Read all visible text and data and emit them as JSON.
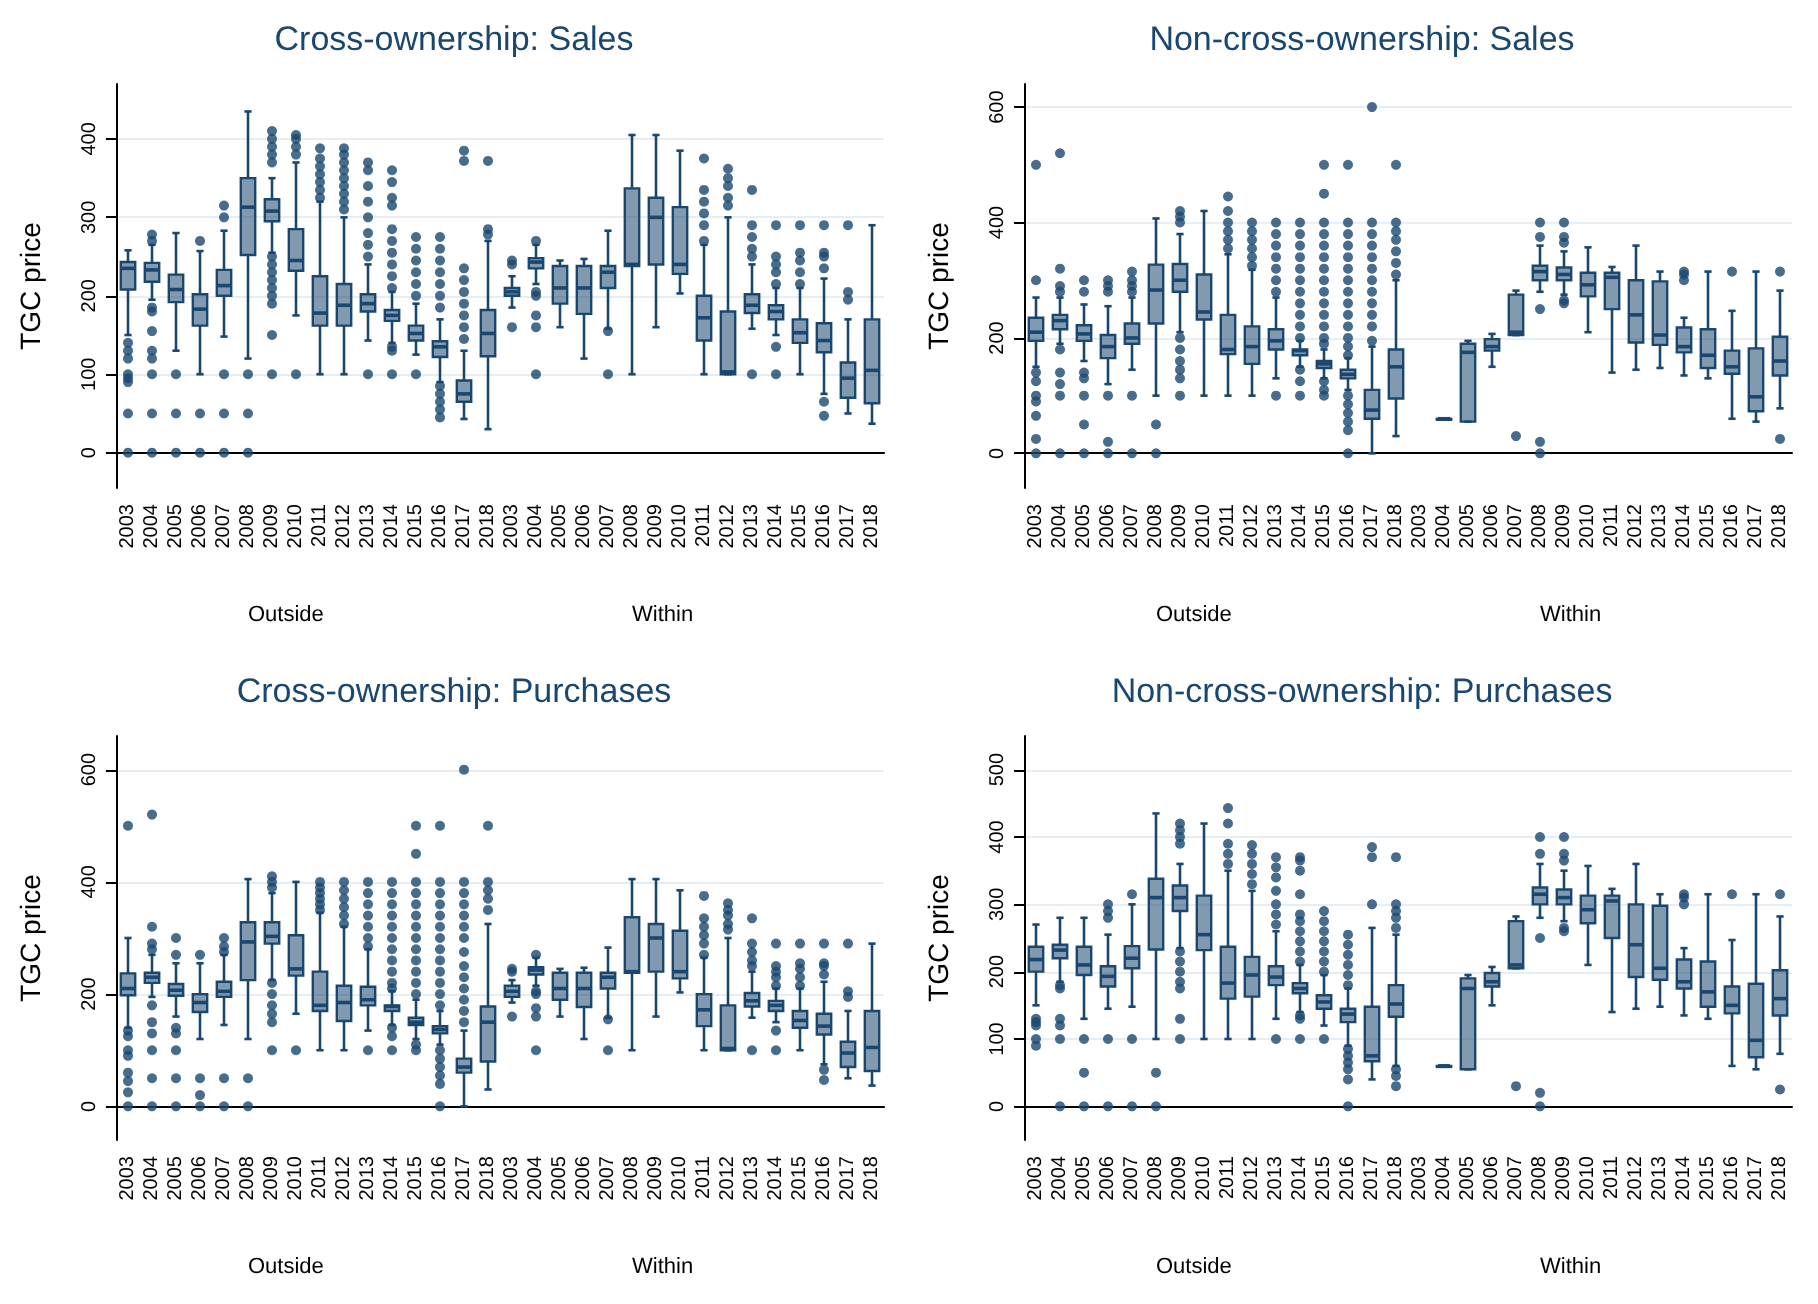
{
  "chart_data": [
    {
      "type": "box",
      "title": "Cross-ownership: Sales",
      "ylabel": "TGC price",
      "color": "#1a476f",
      "grid": "y",
      "ylim": [
        -45,
        470
      ],
      "yticks": [
        0,
        100,
        200,
        300,
        400
      ],
      "annotations": [
        "Outside",
        "Within"
      ],
      "categories": [
        "2003",
        "2004",
        "2005",
        "2006",
        "2007",
        "2008",
        "2009",
        "2010",
        "2011",
        "2012",
        "2013",
        "2014",
        "2015",
        "2016",
        "2017",
        "2018",
        "2003",
        "2004",
        "2005",
        "2006",
        "2007",
        "2008",
        "2009",
        "2010",
        "2011",
        "2012",
        "2013",
        "2014",
        "2015",
        "2016",
        "2017",
        "2018"
      ],
      "boxes": [
        {
          "low": 150,
          "q1": 208,
          "median": 235,
          "q3": 243,
          "high": 258,
          "outliers": [
            140,
            130,
            120,
            100,
            95,
            90,
            50,
            0
          ]
        },
        {
          "low": 195,
          "q1": 218,
          "median": 233,
          "q3": 242,
          "high": 265,
          "outliers": [
            278,
            270,
            185,
            180,
            155,
            130,
            120,
            100,
            50,
            0
          ]
        },
        {
          "low": 130,
          "q1": 192,
          "median": 208,
          "q3": 227,
          "high": 280,
          "outliers": [
            100,
            50,
            0
          ]
        },
        {
          "low": 100,
          "q1": 162,
          "median": 183,
          "q3": 202,
          "high": 257,
          "outliers": [
            270,
            50,
            0
          ]
        },
        {
          "low": 148,
          "q1": 200,
          "median": 213,
          "q3": 233,
          "high": 283,
          "outliers": [
            315,
            300,
            100,
            50,
            0
          ]
        },
        {
          "low": 120,
          "q1": 252,
          "median": 313,
          "q3": 350,
          "high": 435,
          "outliers": [
            100,
            50,
            0
          ]
        },
        {
          "low": 255,
          "q1": 295,
          "median": 308,
          "q3": 323,
          "high": 350,
          "outliers": [
            410,
            400,
            390,
            380,
            370,
            250,
            240,
            230,
            220,
            210,
            200,
            190,
            150,
            100
          ]
        },
        {
          "low": 175,
          "q1": 232,
          "median": 245,
          "q3": 285,
          "high": 370,
          "outliers": [
            405,
            400,
            390,
            380,
            100
          ]
        },
        {
          "low": 100,
          "q1": 162,
          "median": 178,
          "q3": 225,
          "high": 320,
          "outliers": [
            388,
            375,
            365,
            355,
            345,
            335,
            325
          ]
        },
        {
          "low": 100,
          "q1": 162,
          "median": 188,
          "q3": 215,
          "high": 300,
          "outliers": [
            388,
            380,
            370,
            360,
            350,
            340,
            330,
            320,
            310
          ]
        },
        {
          "low": 143,
          "q1": 180,
          "median": 190,
          "q3": 202,
          "high": 240,
          "outliers": [
            370,
            360,
            340,
            320,
            300,
            280,
            265,
            250,
            100
          ]
        },
        {
          "low": 140,
          "q1": 168,
          "median": 175,
          "q3": 182,
          "high": 205,
          "outliers": [
            360,
            345,
            325,
            315,
            285,
            270,
            255,
            240,
            225,
            210,
            135,
            130,
            100
          ]
        },
        {
          "low": 125,
          "q1": 143,
          "median": 152,
          "q3": 162,
          "high": 190,
          "outliers": [
            275,
            260,
            245,
            230,
            215,
            200,
            100
          ]
        },
        {
          "low": 90,
          "q1": 122,
          "median": 135,
          "q3": 142,
          "high": 170,
          "outliers": [
            275,
            260,
            245,
            230,
            215,
            200,
            185,
            85,
            75,
            65,
            55,
            45
          ]
        },
        {
          "low": 43,
          "q1": 65,
          "median": 75,
          "q3": 92,
          "high": 130,
          "outliers": [
            385,
            372,
            235,
            220,
            205,
            190,
            175,
            160,
            145
          ]
        },
        {
          "low": 30,
          "q1": 123,
          "median": 152,
          "q3": 182,
          "high": 270,
          "outliers": [
            372,
            285,
            278
          ]
        },
        {
          "low": 185,
          "q1": 200,
          "median": 205,
          "q3": 210,
          "high": 225,
          "outliers": [
            245,
            240,
            160
          ]
        },
        {
          "low": 215,
          "q1": 235,
          "median": 243,
          "q3": 248,
          "high": 265,
          "outliers": [
            270,
            205,
            200,
            175,
            160,
            100
          ]
        },
        {
          "low": 160,
          "q1": 190,
          "median": 210,
          "q3": 238,
          "high": 245
        },
        {
          "low": 120,
          "q1": 177,
          "median": 210,
          "q3": 238,
          "high": 247
        },
        {
          "low": 158,
          "q1": 210,
          "median": 230,
          "q3": 238,
          "high": 283,
          "outliers": [
            155,
            100
          ]
        },
        {
          "low": 100,
          "q1": 238,
          "median": 240,
          "q3": 337,
          "high": 405
        },
        {
          "low": 160,
          "q1": 240,
          "median": 300,
          "q3": 325,
          "high": 405
        },
        {
          "low": 203,
          "q1": 228,
          "median": 240,
          "q3": 313,
          "high": 385
        },
        {
          "low": 100,
          "q1": 143,
          "median": 172,
          "q3": 200,
          "high": 265,
          "outliers": [
            375,
            335,
            320,
            305,
            290,
            270
          ]
        },
        {
          "low": 100,
          "q1": 100,
          "median": 103,
          "q3": 180,
          "high": 300,
          "outliers": [
            362,
            350,
            340,
            325,
            315
          ]
        },
        {
          "low": 158,
          "q1": 178,
          "median": 188,
          "q3": 202,
          "high": 240,
          "outliers": [
            335,
            290,
            275,
            260,
            250,
            100
          ]
        },
        {
          "low": 150,
          "q1": 170,
          "median": 180,
          "q3": 188,
          "high": 210,
          "outliers": [
            290,
            250,
            240,
            230,
            215,
            135,
            100
          ]
        },
        {
          "low": 100,
          "q1": 140,
          "median": 153,
          "q3": 170,
          "high": 210,
          "outliers": [
            290,
            255,
            245,
            230,
            215
          ]
        },
        {
          "low": 75,
          "q1": 128,
          "median": 143,
          "q3": 165,
          "high": 222,
          "outliers": [
            290,
            255,
            250,
            235,
            65,
            47
          ]
        },
        {
          "low": 50,
          "q1": 70,
          "median": 95,
          "q3": 115,
          "high": 170,
          "outliers": [
            290,
            205,
            195
          ]
        },
        {
          "low": 37,
          "q1": 63,
          "median": 105,
          "q3": 170,
          "high": 290
        }
      ]
    },
    {
      "type": "box",
      "title": "Non-cross-ownership: Sales",
      "ylabel": "TGC price",
      "color": "#1a476f",
      "grid": "y",
      "ylim": [
        -60,
        640
      ],
      "yticks": [
        0,
        200,
        400,
        600
      ],
      "annotations": [
        "Outside",
        "Within"
      ],
      "categories": [
        "2003",
        "2004",
        "2005",
        "2006",
        "2007",
        "2008",
        "2009",
        "2010",
        "2011",
        "2012",
        "2013",
        "2014",
        "2015",
        "2016",
        "2017",
        "2018",
        "2003",
        "2004",
        "2005",
        "2006",
        "2007",
        "2008",
        "2009",
        "2010",
        "2011",
        "2012",
        "2013",
        "2014",
        "2015",
        "2016",
        "2017",
        "2018"
      ],
      "boxes": [
        {
          "low": 150,
          "q1": 195,
          "median": 210,
          "q3": 235,
          "high": 270,
          "outliers": [
            500,
            300,
            140,
            125,
            100,
            90,
            65,
            25,
            0
          ]
        },
        {
          "low": 190,
          "q1": 215,
          "median": 230,
          "q3": 240,
          "high": 270,
          "outliers": [
            520,
            320,
            290,
            280,
            180,
            140,
            120,
            100,
            0
          ]
        },
        {
          "low": 160,
          "q1": 195,
          "median": 207,
          "q3": 222,
          "high": 258,
          "outliers": [
            300,
            280,
            140,
            130,
            100,
            50,
            0
          ]
        },
        {
          "low": 120,
          "q1": 165,
          "median": 185,
          "q3": 205,
          "high": 255,
          "outliers": [
            300,
            290,
            280,
            100,
            20,
            0
          ]
        },
        {
          "low": 145,
          "q1": 190,
          "median": 200,
          "q3": 225,
          "high": 270,
          "outliers": [
            315,
            300,
            290,
            280,
            100,
            0
          ]
        },
        {
          "low": 100,
          "q1": 225,
          "median": 283,
          "q3": 327,
          "high": 407,
          "outliers": [
            50,
            0
          ]
        },
        {
          "low": 210,
          "q1": 280,
          "median": 300,
          "q3": 328,
          "high": 380,
          "outliers": [
            420,
            410,
            400,
            200,
            180,
            160,
            145,
            130,
            100
          ]
        },
        {
          "low": 100,
          "q1": 232,
          "median": 245,
          "q3": 310,
          "high": 420
        },
        {
          "low": 100,
          "q1": 172,
          "median": 180,
          "q3": 240,
          "high": 345,
          "outliers": [
            445,
            420,
            400,
            385,
            370,
            355
          ]
        },
        {
          "low": 100,
          "q1": 155,
          "median": 185,
          "q3": 220,
          "high": 318,
          "outliers": [
            400,
            385,
            370,
            355,
            340,
            325
          ]
        },
        {
          "low": 130,
          "q1": 180,
          "median": 195,
          "q3": 215,
          "high": 270,
          "outliers": [
            400,
            380,
            360,
            340,
            320,
            300,
            280,
            100
          ]
        },
        {
          "low": 150,
          "q1": 170,
          "median": 178,
          "q3": 180,
          "high": 195,
          "outliers": [
            400,
            380,
            360,
            340,
            320,
            300,
            280,
            260,
            240,
            220,
            200,
            145,
            125,
            100
          ]
        },
        {
          "low": 130,
          "q1": 148,
          "median": 155,
          "q3": 160,
          "high": 180,
          "outliers": [
            500,
            450,
            400,
            380,
            360,
            340,
            320,
            300,
            280,
            260,
            240,
            220,
            200,
            190,
            125,
            110,
            100
          ]
        },
        {
          "low": 110,
          "q1": 130,
          "median": 137,
          "q3": 145,
          "high": 165,
          "outliers": [
            500,
            400,
            380,
            360,
            340,
            320,
            300,
            280,
            260,
            240,
            220,
            200,
            185,
            170,
            100,
            85,
            70,
            55,
            40,
            0
          ]
        },
        {
          "low": 0,
          "q1": 60,
          "median": 75,
          "q3": 110,
          "high": 185,
          "outliers": [
            600,
            400,
            380,
            360,
            340,
            320,
            300,
            280,
            260,
            240,
            220,
            195
          ]
        },
        {
          "low": 30,
          "q1": 95,
          "median": 150,
          "q3": 180,
          "high": 300,
          "outliers": [
            500,
            400,
            385,
            370,
            350,
            330,
            310
          ]
        },
        null,
        {
          "low": 60,
          "q1": 60,
          "median": 60,
          "q3": 60,
          "high": 60
        },
        {
          "low": 55,
          "q1": 55,
          "median": 175,
          "q3": 190,
          "high": 195
        },
        {
          "low": 150,
          "q1": 178,
          "median": 185,
          "q3": 198,
          "high": 207
        },
        {
          "low": 205,
          "q1": 205,
          "median": 210,
          "q3": 275,
          "high": 282,
          "outliers": [
            30
          ]
        },
        {
          "low": 280,
          "q1": 300,
          "median": 315,
          "q3": 325,
          "high": 360,
          "outliers": [
            400,
            375,
            250,
            20,
            0
          ]
        },
        {
          "low": 275,
          "q1": 300,
          "median": 310,
          "q3": 322,
          "high": 350,
          "outliers": [
            400,
            375,
            365,
            265,
            260
          ]
        },
        {
          "low": 210,
          "q1": 272,
          "median": 292,
          "q3": 313,
          "high": 357
        },
        {
          "low": 140,
          "q1": 250,
          "median": 305,
          "q3": 313,
          "high": 323
        },
        {
          "low": 145,
          "q1": 192,
          "median": 240,
          "q3": 300,
          "high": 360
        },
        {
          "low": 148,
          "q1": 188,
          "median": 205,
          "q3": 298,
          "high": 315
        },
        {
          "low": 135,
          "q1": 175,
          "median": 185,
          "q3": 218,
          "high": 235,
          "outliers": [
            315,
            310,
            300
          ]
        },
        {
          "low": 130,
          "q1": 148,
          "median": 170,
          "q3": 215,
          "high": 315
        },
        {
          "low": 60,
          "q1": 138,
          "median": 150,
          "q3": 178,
          "high": 247,
          "outliers": [
            315
          ]
        },
        {
          "low": 55,
          "q1": 73,
          "median": 98,
          "q3": 182,
          "high": 315
        },
        {
          "low": 78,
          "q1": 135,
          "median": 160,
          "q3": 202,
          "high": 282,
          "outliers": [
            315,
            25
          ]
        }
      ]
    },
    {
      "type": "box",
      "title": "Cross-ownership: Purchases",
      "ylabel": "TGC price",
      "color": "#1a476f",
      "grid": "y",
      "ylim": [
        -60,
        660
      ],
      "yticks": [
        0,
        200,
        400,
        600
      ],
      "annotations": [
        "Outside",
        "Within"
      ],
      "categories": [
        "2003",
        "2004",
        "2005",
        "2006",
        "2007",
        "2008",
        "2009",
        "2010",
        "2011",
        "2012",
        "2013",
        "2014",
        "2015",
        "2016",
        "2017",
        "2018",
        "2003",
        "2004",
        "2005",
        "2006",
        "2007",
        "2008",
        "2009",
        "2010",
        "2011",
        "2012",
        "2013",
        "2014",
        "2015",
        "2016",
        "2017",
        "2018"
      ],
      "boxes": [
        {
          "low": 140,
          "q1": 198,
          "median": 210,
          "q3": 237,
          "high": 300,
          "outliers": [
            500,
            135,
            125,
            100,
            90,
            60,
            45,
            25,
            0
          ]
        },
        {
          "low": 195,
          "q1": 220,
          "median": 230,
          "q3": 238,
          "high": 270,
          "outliers": [
            520,
            320,
            290,
            280,
            180,
            150,
            130,
            100,
            50,
            0
          ]
        },
        {
          "low": 160,
          "q1": 197,
          "median": 207,
          "q3": 218,
          "high": 255,
          "outliers": [
            300,
            270,
            140,
            130,
            100,
            50,
            0
          ]
        },
        {
          "low": 120,
          "q1": 168,
          "median": 185,
          "q3": 200,
          "high": 255,
          "outliers": [
            270,
            50,
            20,
            0
          ]
        },
        {
          "low": 145,
          "q1": 195,
          "median": 205,
          "q3": 222,
          "high": 270,
          "outliers": [
            300,
            285,
            275,
            50,
            0
          ]
        },
        {
          "low": 120,
          "q1": 225,
          "median": 293,
          "q3": 328,
          "high": 405,
          "outliers": [
            50,
            0
          ]
        },
        {
          "low": 225,
          "q1": 290,
          "median": 303,
          "q3": 328,
          "high": 380,
          "outliers": [
            410,
            400,
            390,
            220,
            200,
            180,
            165,
            150,
            100
          ]
        },
        {
          "low": 165,
          "q1": 233,
          "median": 245,
          "q3": 305,
          "high": 400,
          "outliers": [
            100
          ]
        },
        {
          "low": 100,
          "q1": 170,
          "median": 180,
          "q3": 240,
          "high": 345,
          "outliers": [
            400,
            390,
            380,
            370,
            360,
            350
          ]
        },
        {
          "low": 100,
          "q1": 152,
          "median": 185,
          "q3": 215,
          "high": 320,
          "outliers": [
            400,
            385,
            370,
            355,
            340,
            325
          ]
        },
        {
          "low": 135,
          "q1": 180,
          "median": 190,
          "q3": 213,
          "high": 280,
          "outliers": [
            400,
            380,
            360,
            340,
            320,
            300,
            285,
            100
          ]
        },
        {
          "low": 145,
          "q1": 170,
          "median": 178,
          "q3": 180,
          "high": 205,
          "outliers": [
            400,
            380,
            360,
            340,
            320,
            300,
            280,
            260,
            240,
            220,
            210,
            140,
            125,
            100
          ]
        },
        {
          "low": 120,
          "q1": 145,
          "median": 150,
          "q3": 158,
          "high": 190,
          "outliers": [
            500,
            450,
            400,
            380,
            360,
            340,
            320,
            300,
            280,
            260,
            240,
            220,
            200,
            110,
            100
          ]
        },
        {
          "low": 110,
          "q1": 130,
          "median": 137,
          "q3": 143,
          "high": 170,
          "outliers": [
            500,
            400,
            380,
            360,
            340,
            320,
            300,
            280,
            260,
            240,
            220,
            200,
            180,
            100,
            85,
            70,
            55,
            40,
            0
          ]
        },
        {
          "low": 0,
          "q1": 60,
          "median": 70,
          "q3": 85,
          "high": 135,
          "outliers": [
            600,
            400,
            380,
            360,
            340,
            320,
            300,
            275,
            250,
            230,
            210,
            190,
            170,
            150
          ]
        },
        {
          "low": 30,
          "q1": 80,
          "median": 150,
          "q3": 178,
          "high": 325,
          "outliers": [
            500,
            400,
            385,
            370,
            350
          ]
        },
        {
          "low": 185,
          "q1": 195,
          "median": 205,
          "q3": 215,
          "high": 225,
          "outliers": [
            245,
            240,
            160
          ]
        },
        {
          "low": 215,
          "q1": 235,
          "median": 243,
          "q3": 248,
          "high": 265,
          "outliers": [
            270,
            205,
            200,
            175,
            160,
            100
          ]
        },
        {
          "low": 160,
          "q1": 190,
          "median": 210,
          "q3": 238,
          "high": 245
        },
        {
          "low": 120,
          "q1": 177,
          "median": 210,
          "q3": 238,
          "high": 247
        },
        {
          "low": 158,
          "q1": 210,
          "median": 230,
          "q3": 238,
          "high": 283,
          "outliers": [
            155,
            100
          ]
        },
        {
          "low": 100,
          "q1": 238,
          "median": 240,
          "q3": 337,
          "high": 405
        },
        {
          "low": 160,
          "q1": 240,
          "median": 300,
          "q3": 325,
          "high": 405
        },
        {
          "low": 203,
          "q1": 228,
          "median": 240,
          "q3": 313,
          "high": 385
        },
        {
          "low": 100,
          "q1": 143,
          "median": 172,
          "q3": 200,
          "high": 265,
          "outliers": [
            375,
            335,
            320,
            305,
            290,
            270
          ]
        },
        {
          "low": 100,
          "q1": 100,
          "median": 103,
          "q3": 180,
          "high": 300,
          "outliers": [
            362,
            350,
            340,
            325,
            315
          ]
        },
        {
          "low": 158,
          "q1": 178,
          "median": 188,
          "q3": 202,
          "high": 240,
          "outliers": [
            335,
            290,
            275,
            260,
            250,
            100
          ]
        },
        {
          "low": 150,
          "q1": 170,
          "median": 180,
          "q3": 188,
          "high": 210,
          "outliers": [
            290,
            250,
            240,
            230,
            215,
            135,
            100
          ]
        },
        {
          "low": 100,
          "q1": 140,
          "median": 153,
          "q3": 170,
          "high": 210,
          "outliers": [
            290,
            255,
            245,
            230,
            215
          ]
        },
        {
          "low": 75,
          "q1": 128,
          "median": 143,
          "q3": 165,
          "high": 222,
          "outliers": [
            290,
            255,
            250,
            235,
            65,
            47
          ]
        },
        {
          "low": 50,
          "q1": 70,
          "median": 95,
          "q3": 115,
          "high": 170,
          "outliers": [
            290,
            205,
            195
          ]
        },
        {
          "low": 37,
          "q1": 63,
          "median": 105,
          "q3": 170,
          "high": 290
        }
      ]
    },
    {
      "type": "box",
      "title": "Non-cross-ownership: Purchases",
      "ylabel": "TGC price",
      "color": "#1a476f",
      "grid": "y",
      "ylim": [
        -50,
        550
      ],
      "yticks": [
        0,
        100,
        200,
        300,
        400,
        500
      ],
      "annotations": [
        "Outside",
        "Within"
      ],
      "categories": [
        "2003",
        "2004",
        "2005",
        "2006",
        "2007",
        "2008",
        "2009",
        "2010",
        "2011",
        "2012",
        "2013",
        "2014",
        "2015",
        "2016",
        "2017",
        "2018",
        "2003",
        "2004",
        "2005",
        "2006",
        "2007",
        "2008",
        "2009",
        "2010",
        "2011",
        "2012",
        "2013",
        "2014",
        "2015",
        "2016",
        "2017",
        "2018"
      ],
      "boxes": [
        {
          "low": 150,
          "q1": 200,
          "median": 218,
          "q3": 237,
          "high": 270,
          "outliers": [
            130,
            125,
            120,
            100,
            90
          ]
        },
        {
          "low": 185,
          "q1": 220,
          "median": 232,
          "q3": 240,
          "high": 280,
          "outliers": [
            180,
            175,
            130,
            120,
            100,
            0
          ]
        },
        {
          "low": 130,
          "q1": 195,
          "median": 210,
          "q3": 237,
          "high": 280,
          "outliers": [
            100,
            50,
            0
          ]
        },
        {
          "low": 145,
          "q1": 178,
          "median": 193,
          "q3": 208,
          "high": 255,
          "outliers": [
            300,
            290,
            280,
            100,
            0
          ]
        },
        {
          "low": 148,
          "q1": 205,
          "median": 220,
          "q3": 238,
          "high": 300,
          "outliers": [
            315,
            100,
            0
          ]
        },
        {
          "low": 100,
          "q1": 233,
          "median": 310,
          "q3": 338,
          "high": 435,
          "outliers": [
            50,
            0
          ]
        },
        {
          "low": 235,
          "q1": 290,
          "median": 310,
          "q3": 328,
          "high": 360,
          "outliers": [
            420,
            410,
            400,
            390,
            230,
            215,
            200,
            185,
            175,
            130,
            100
          ]
        },
        {
          "low": 100,
          "q1": 232,
          "median": 255,
          "q3": 313,
          "high": 420
        },
        {
          "low": 100,
          "q1": 160,
          "median": 183,
          "q3": 237,
          "high": 350,
          "outliers": [
            443,
            420,
            390,
            375,
            360
          ]
        },
        {
          "low": 100,
          "q1": 163,
          "median": 195,
          "q3": 222,
          "high": 320,
          "outliers": [
            388,
            375,
            360,
            345,
            330
          ]
        },
        {
          "low": 130,
          "q1": 180,
          "median": 192,
          "q3": 208,
          "high": 260,
          "outliers": [
            370,
            355,
            340,
            320,
            300,
            285,
            270,
            100
          ]
        },
        {
          "low": 140,
          "q1": 168,
          "median": 175,
          "q3": 183,
          "high": 210,
          "outliers": [
            370,
            365,
            350,
            315,
            285,
            275,
            260,
            245,
            230,
            215,
            135,
            130,
            100
          ]
        },
        {
          "low": 120,
          "q1": 145,
          "median": 155,
          "q3": 165,
          "high": 195,
          "outliers": [
            290,
            275,
            260,
            245,
            230,
            215,
            200,
            100
          ]
        },
        {
          "low": 90,
          "q1": 125,
          "median": 137,
          "q3": 145,
          "high": 175,
          "outliers": [
            255,
            240,
            225,
            210,
            195,
            180,
            85,
            75,
            65,
            55,
            40,
            0
          ]
        },
        {
          "low": 40,
          "q1": 67,
          "median": 75,
          "q3": 148,
          "high": 265,
          "outliers": [
            385,
            370,
            300
          ]
        },
        {
          "low": 60,
          "q1": 133,
          "median": 152,
          "q3": 180,
          "high": 255,
          "outliers": [
            370,
            300,
            290,
            280,
            265,
            55,
            45,
            30
          ]
        },
        null,
        {
          "low": 60,
          "q1": 60,
          "median": 60,
          "q3": 60,
          "high": 60
        },
        {
          "low": 55,
          "q1": 55,
          "median": 175,
          "q3": 190,
          "high": 195
        },
        {
          "low": 150,
          "q1": 178,
          "median": 185,
          "q3": 198,
          "high": 207
        },
        {
          "low": 205,
          "q1": 205,
          "median": 210,
          "q3": 275,
          "high": 282,
          "outliers": [
            30
          ]
        },
        {
          "low": 280,
          "q1": 300,
          "median": 315,
          "q3": 325,
          "high": 360,
          "outliers": [
            400,
            375,
            250,
            20,
            0
          ]
        },
        {
          "low": 275,
          "q1": 300,
          "median": 310,
          "q3": 322,
          "high": 350,
          "outliers": [
            400,
            375,
            365,
            265,
            260
          ]
        },
        {
          "low": 210,
          "q1": 272,
          "median": 292,
          "q3": 313,
          "high": 357
        },
        {
          "low": 140,
          "q1": 250,
          "median": 305,
          "q3": 313,
          "high": 323
        },
        {
          "low": 145,
          "q1": 192,
          "median": 240,
          "q3": 300,
          "high": 360
        },
        {
          "low": 148,
          "q1": 188,
          "median": 205,
          "q3": 298,
          "high": 315
        },
        {
          "low": 135,
          "q1": 175,
          "median": 185,
          "q3": 218,
          "high": 235,
          "outliers": [
            315,
            310,
            300
          ]
        },
        {
          "low": 130,
          "q1": 148,
          "median": 170,
          "q3": 215,
          "high": 315
        },
        {
          "low": 60,
          "q1": 138,
          "median": 150,
          "q3": 178,
          "high": 247,
          "outliers": [
            315
          ]
        },
        {
          "low": 55,
          "q1": 73,
          "median": 98,
          "q3": 182,
          "high": 315
        },
        {
          "low": 78,
          "q1": 135,
          "median": 160,
          "q3": 202,
          "high": 282,
          "outliers": [
            315,
            25
          ]
        }
      ]
    }
  ]
}
